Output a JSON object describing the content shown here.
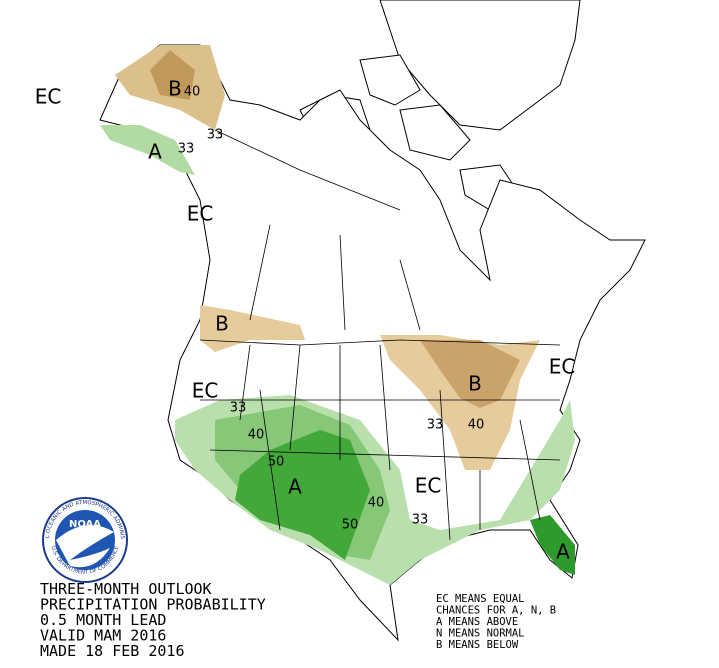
{
  "title_lines": [
    "THREE-MONTH OUTLOOK",
    "PRECIPITATION PROBABILITY",
    "0.5 MONTH LEAD",
    "VALID MAM 2016",
    "MADE 18 FEB 2016"
  ],
  "legend_lines": [
    "EC MEANS EQUAL",
    "CHANCES FOR A, N, B",
    "A MEANS ABOVE",
    "N MEANS NORMAL",
    "B MEANS BELOW"
  ],
  "logo": {
    "name": "NOAA",
    "ring_top": "NATIONAL OCEANIC AND ATMOSPHERIC ADMINISTRATION",
    "ring_bottom": "U.S. DEPARTMENT OF COMMERCE"
  },
  "map_labels": [
    "EC",
    "B",
    "40",
    "33",
    "A",
    "33",
    "EC",
    "B",
    "EC",
    "33",
    "40",
    "50",
    "A",
    "40",
    "50",
    "EC",
    "33",
    "B",
    "40",
    "33",
    "EC",
    "A"
  ]
}
